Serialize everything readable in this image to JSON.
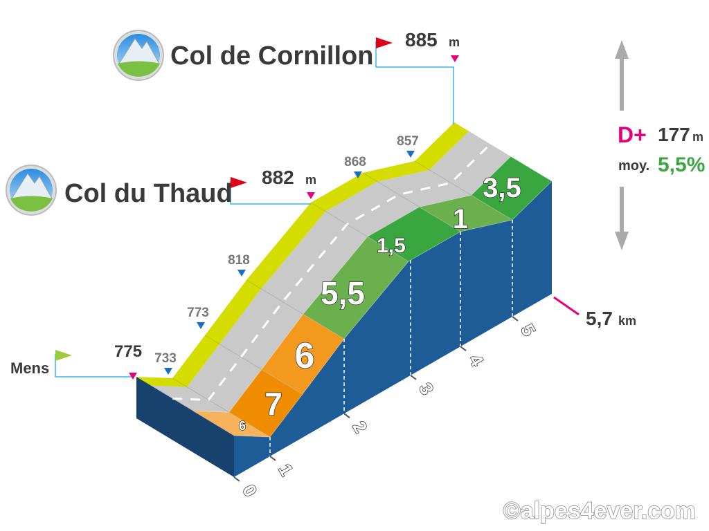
{
  "climb": {
    "summit": {
      "name": "Col de Cornillon",
      "altitude": "885",
      "unit": "m"
    },
    "pass": {
      "name": "Col du Thaud",
      "altitude": "882",
      "unit": "m"
    },
    "start": {
      "name": "Mens",
      "altitude": "775"
    },
    "waypoints": [
      "733",
      "773",
      "818",
      "868",
      "857"
    ],
    "gradients": [
      "6",
      "7",
      "6",
      "5,5",
      "1,5",
      "1",
      "3,5"
    ],
    "km_labels": [
      "0",
      "1",
      "2",
      "3",
      "4",
      "5"
    ],
    "distance": {
      "value": "5,7",
      "unit": "km"
    },
    "elevation_gain": {
      "label": "D+",
      "value": "177",
      "unit": "m"
    },
    "average": {
      "label": "moy.",
      "value": "5,5%"
    }
  },
  "credit": "©alpes4ever.com"
}
